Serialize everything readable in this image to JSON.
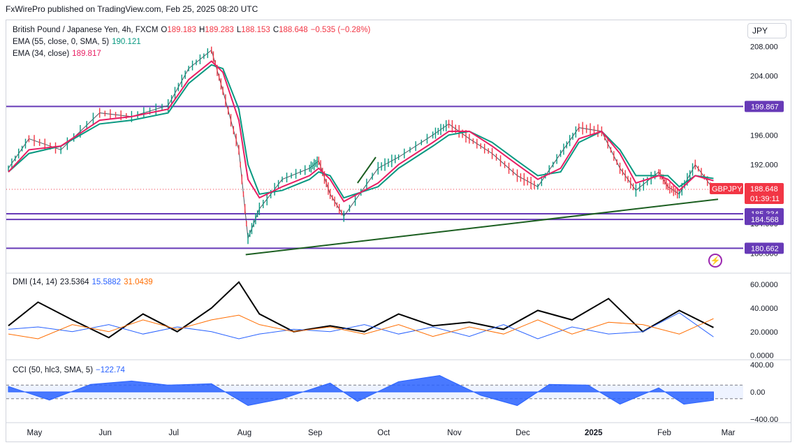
{
  "publisher": "FxWirePro published on TradingView.com, Feb 25, 2025 08:20 UTC",
  "currency_button": "JPY",
  "legend": {
    "symbol": "British Pound / Japanese Yen, 4h, FXCM",
    "o_label": "O",
    "o_value": "189.183",
    "h_label": "H",
    "h_value": "189.283",
    "l_label": "L",
    "l_value": "188.153",
    "c_label": "C",
    "c_value": "188.648",
    "change": "−0.535 (−0.28%)",
    "ema55_label": "EMA (55, close, 0, SMA, 5)",
    "ema55_value": "190.121",
    "ema34_label": "EMA (34, close)",
    "ema34_value": "189.817",
    "dmi_label": "DMI (14, 14)",
    "dmi_adx": "23.5364",
    "dmi_plus": "15.5882",
    "dmi_minus": "31.0439",
    "cci_label": "CCI (50, hlc3, SMA, 5)",
    "cci_value": "−122.74"
  },
  "price_badge": {
    "symbol": "GBPJPY",
    "price": "188.648",
    "countdown": "01:39:11"
  },
  "colors": {
    "ema55": "#089981",
    "ema34": "#e91e63",
    "level": "#673ab7",
    "trend": "#1b5e20",
    "up": "#089981",
    "down": "#f23645",
    "adx": "#000000",
    "plus_di": "#2962ff",
    "minus_di": "#ff6d00",
    "cci": "#2962ff",
    "badge_red": "#f23645"
  },
  "chart_data": [
    {
      "type": "line",
      "name": "GBPJPY 4h",
      "x": [
        "2024-04-22",
        "2024-05-01",
        "2024-05-15",
        "2024-06-01",
        "2024-06-15",
        "2024-07-01",
        "2024-07-10",
        "2024-07-20",
        "2024-07-25",
        "2024-08-01",
        "2024-08-05",
        "2024-08-10",
        "2024-08-20",
        "2024-09-01",
        "2024-09-05",
        "2024-09-10",
        "2024-09-16",
        "2024-10-01",
        "2024-10-10",
        "2024-10-25",
        "2024-11-01",
        "2024-11-10",
        "2024-11-20",
        "2024-12-01",
        "2024-12-10",
        "2024-12-20",
        "2024-12-28",
        "2025-01-07",
        "2025-01-15",
        "2025-01-22",
        "2025-02-01",
        "2025-02-05",
        "2025-02-10",
        "2025-02-17",
        "2025-02-25"
      ],
      "close": [
        191.5,
        195.5,
        194.0,
        199.0,
        198.5,
        200.0,
        205.0,
        207.5,
        202.0,
        194.0,
        182.0,
        186.0,
        190.0,
        191.5,
        192.5,
        188.0,
        185.0,
        191.5,
        193.0,
        196.0,
        197.5,
        195.5,
        193.5,
        190.5,
        189.0,
        193.5,
        197.0,
        196.5,
        191.5,
        188.5,
        191.0,
        189.0,
        188.0,
        192.0,
        188.648
      ],
      "ema34": [
        191.0,
        194.0,
        194.5,
        198.0,
        198.5,
        199.5,
        203.5,
        206.0,
        204.5,
        198.0,
        190.0,
        187.5,
        189.0,
        190.5,
        191.5,
        190.0,
        187.0,
        189.5,
        192.0,
        195.0,
        196.5,
        196.5,
        194.5,
        192.0,
        190.0,
        191.5,
        195.5,
        196.5,
        193.5,
        189.5,
        190.5,
        190.0,
        188.5,
        190.5,
        189.817
      ],
      "ema55": [
        191.0,
        193.5,
        194.5,
        197.5,
        198.0,
        199.0,
        203.0,
        205.5,
        205.0,
        199.5,
        192.0,
        188.0,
        188.5,
        190.0,
        191.0,
        190.5,
        187.5,
        189.0,
        191.5,
        194.5,
        196.0,
        196.5,
        195.0,
        192.5,
        190.5,
        191.0,
        195.0,
        196.5,
        194.0,
        190.5,
        190.5,
        190.5,
        189.0,
        190.5,
        190.121
      ],
      "yticks": [
        "208.000",
        "204.000",
        "200.000",
        "196.000",
        "192.000",
        "188.000",
        "184.000",
        "180.000"
      ],
      "ylim": [
        179.0,
        210.5
      ],
      "levels": [
        {
          "label": "199.867",
          "value": 199.867
        },
        {
          "label": "185.334",
          "value": 185.334
        },
        {
          "label": "184.568",
          "value": 184.568
        },
        {
          "label": "180.662",
          "value": 180.662
        }
      ],
      "last_price_label": "188.648",
      "trendlines": [
        {
          "from": [
            "2024-08-04",
            179.8
          ],
          "to": [
            "2025-02-27",
            187.3
          ],
          "color": "#1b5e20"
        },
        {
          "from": [
            "2024-09-22",
            189.5
          ],
          "to": [
            "2024-09-30",
            193.0
          ],
          "color": "#1b5e20"
        }
      ],
      "xticks": [
        "May",
        "Jun",
        "Jul",
        "Aug",
        "Sep",
        "Oct",
        "Nov",
        "Dec",
        "2025",
        "Feb",
        "Mar"
      ],
      "xlabel": "",
      "ylabel": "",
      "title": "British Pound / Japanese Yen, 4h, FXCM"
    },
    {
      "type": "line",
      "name": "DMI (14, 14)",
      "x": [
        "2024-04-22",
        "2024-05-05",
        "2024-05-20",
        "2024-06-05",
        "2024-06-20",
        "2024-07-05",
        "2024-07-20",
        "2024-08-01",
        "2024-08-10",
        "2024-08-25",
        "2024-09-10",
        "2024-09-25",
        "2024-10-10",
        "2024-10-25",
        "2024-11-10",
        "2024-11-25",
        "2024-12-10",
        "2024-12-25",
        "2025-01-10",
        "2025-01-25",
        "2025-02-10",
        "2025-02-25"
      ],
      "series": [
        {
          "name": "ADX",
          "values": [
            25,
            45,
            30,
            15,
            35,
            20,
            40,
            62,
            35,
            20,
            25,
            20,
            35,
            25,
            28,
            22,
            38,
            30,
            48,
            20,
            38,
            23.5364
          ]
        },
        {
          "name": "+DI",
          "values": [
            22,
            24,
            20,
            26,
            18,
            24,
            20,
            14,
            18,
            22,
            20,
            26,
            18,
            24,
            16,
            26,
            14,
            24,
            18,
            20,
            36,
            15.5882
          ]
        },
        {
          "name": "−DI",
          "values": [
            18,
            14,
            26,
            20,
            30,
            22,
            30,
            34,
            26,
            20,
            24,
            18,
            26,
            16,
            24,
            18,
            30,
            18,
            28,
            26,
            18,
            31.0439
          ]
        }
      ],
      "yticks": [
        "60.0000",
        "40.0000",
        "20.0000",
        "0.0000"
      ],
      "ylim": [
        -2,
        66
      ]
    },
    {
      "type": "area",
      "name": "CCI (50, hlc3, SMA, 5)",
      "x": [
        "2024-04-22",
        "2024-05-10",
        "2024-05-28",
        "2024-06-15",
        "2024-07-01",
        "2024-07-20",
        "2024-08-05",
        "2024-08-20",
        "2024-09-10",
        "2024-09-22",
        "2024-10-10",
        "2024-10-28",
        "2024-11-15",
        "2024-12-01",
        "2024-12-15",
        "2025-01-01",
        "2025-01-15",
        "2025-02-01",
        "2025-02-12",
        "2025-02-25"
      ],
      "values": [
        80,
        -120,
        110,
        160,
        100,
        120,
        -200,
        -100,
        130,
        -140,
        150,
        240,
        -50,
        -200,
        110,
        100,
        -180,
        60,
        -180,
        -122.74
      ],
      "band": [
        -100,
        100
      ],
      "yticks": [
        "400.00",
        "0.00",
        "−400.00"
      ],
      "ylim": [
        -420,
        420
      ]
    }
  ]
}
